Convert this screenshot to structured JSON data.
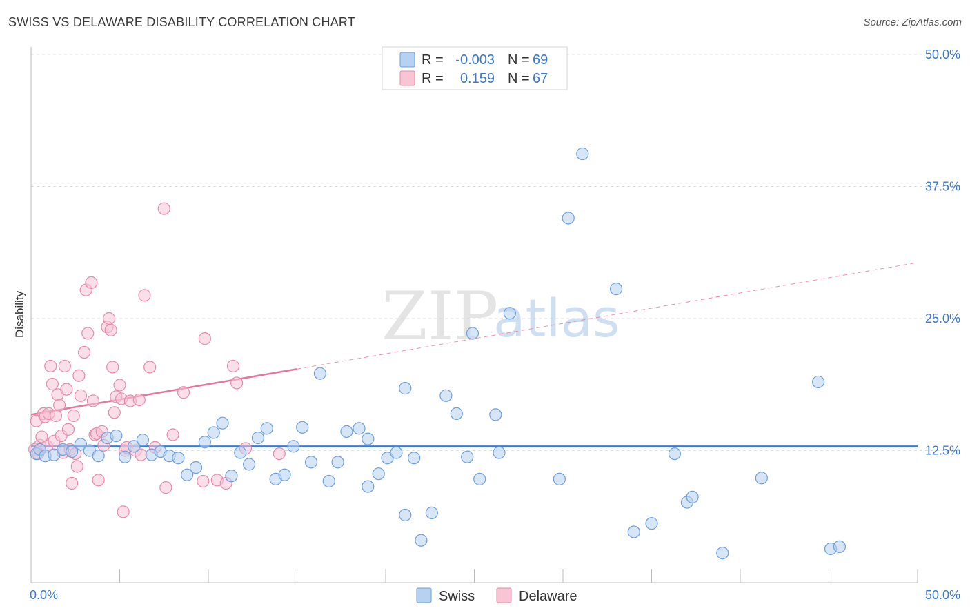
{
  "header": {
    "title": "SWISS VS DELAWARE DISABILITY CORRELATION CHART",
    "source": "Source: ZipAtlas.com"
  },
  "watermark": {
    "zip": "ZIP",
    "atlas": "atlas"
  },
  "legend": {
    "r_label": "R =",
    "n_label": "N =",
    "entries": [
      {
        "name": "Swiss",
        "r": "-0.003",
        "n": "69",
        "fill": "#b7d1f1",
        "stroke": "#6e9fdb"
      },
      {
        "name": "Delaware",
        "r": "0.159",
        "n": "67",
        "fill": "#f8c5d5",
        "stroke": "#e88aaa"
      }
    ]
  },
  "chart_data": {
    "type": "scatter",
    "title": "SWISS VS DELAWARE DISABILITY CORRELATION CHART",
    "xlabel": "",
    "ylabel": "Disability",
    "xlim": [
      0,
      50
    ],
    "ylim": [
      0,
      50
    ],
    "x_tick_labels": [
      "0.0%",
      "50.0%"
    ],
    "y_ticks": [
      12.5,
      25.0,
      37.5,
      50.0
    ],
    "y_tick_labels": [
      "12.5%",
      "25.0%",
      "37.5%",
      "50.0%"
    ],
    "grid": "horizontal dashed",
    "colors": {
      "swiss": "#3a7bd5",
      "delaware": "#e8769a"
    },
    "series": [
      {
        "name": "Swiss",
        "trend": {
          "x0": 0,
          "y0": 12.9,
          "x1": 50,
          "y1": 12.9,
          "solid_to": 50
        },
        "points": [
          [
            0.3,
            12.2
          ],
          [
            0.5,
            12.6
          ],
          [
            0.8,
            12.0
          ],
          [
            1.3,
            12.1
          ],
          [
            1.8,
            12.6
          ],
          [
            2.3,
            12.4
          ],
          [
            2.8,
            13.1
          ],
          [
            3.3,
            12.5
          ],
          [
            3.8,
            12.0
          ],
          [
            4.3,
            13.7
          ],
          [
            4.8,
            13.9
          ],
          [
            5.3,
            11.9
          ],
          [
            5.8,
            12.9
          ],
          [
            6.3,
            13.5
          ],
          [
            6.8,
            12.1
          ],
          [
            7.3,
            12.4
          ],
          [
            7.8,
            12.0
          ],
          [
            8.3,
            11.8
          ],
          [
            8.8,
            10.2
          ],
          [
            9.3,
            10.9
          ],
          [
            9.8,
            13.3
          ],
          [
            10.3,
            14.2
          ],
          [
            10.8,
            15.1
          ],
          [
            11.3,
            10.1
          ],
          [
            11.8,
            12.3
          ],
          [
            12.3,
            11.2
          ],
          [
            12.8,
            13.7
          ],
          [
            13.3,
            14.6
          ],
          [
            13.8,
            9.8
          ],
          [
            14.3,
            10.2
          ],
          [
            14.8,
            12.9
          ],
          [
            15.3,
            14.7
          ],
          [
            15.8,
            11.4
          ],
          [
            16.3,
            19.8
          ],
          [
            16.8,
            9.6
          ],
          [
            17.3,
            11.4
          ],
          [
            17.8,
            14.3
          ],
          [
            18.5,
            14.6
          ],
          [
            19.0,
            13.6
          ],
          [
            19.0,
            9.1
          ],
          [
            19.6,
            10.3
          ],
          [
            20.1,
            11.8
          ],
          [
            20.6,
            12.3
          ],
          [
            21.1,
            6.4
          ],
          [
            21.1,
            18.4
          ],
          [
            21.6,
            11.8
          ],
          [
            22.0,
            4.0
          ],
          [
            22.6,
            6.6
          ],
          [
            23.4,
            17.7
          ],
          [
            24.0,
            16.0
          ],
          [
            24.6,
            11.9
          ],
          [
            24.9,
            23.6
          ],
          [
            25.3,
            9.8
          ],
          [
            26.2,
            15.9
          ],
          [
            26.4,
            12.3
          ],
          [
            27.0,
            25.5
          ],
          [
            29.8,
            9.8
          ],
          [
            30.3,
            34.5
          ],
          [
            31.1,
            40.6
          ],
          [
            33.0,
            27.8
          ],
          [
            34.0,
            4.8
          ],
          [
            35.0,
            5.6
          ],
          [
            36.3,
            12.2
          ],
          [
            37.0,
            7.6
          ],
          [
            37.3,
            8.1
          ],
          [
            39.0,
            2.8
          ],
          [
            41.2,
            9.9
          ],
          [
            44.4,
            19.0
          ],
          [
            45.1,
            3.2
          ],
          [
            45.6,
            3.4
          ]
        ]
      },
      {
        "name": "Delaware",
        "trend": {
          "x0": 0,
          "y0": 15.9,
          "x1": 50,
          "y1": 30.3,
          "solid_to": 15
        },
        "points": [
          [
            0.2,
            12.6
          ],
          [
            0.3,
            15.3
          ],
          [
            0.4,
            12.2
          ],
          [
            0.5,
            13.0
          ],
          [
            0.6,
            13.8
          ],
          [
            0.7,
            16.0
          ],
          [
            0.8,
            15.7
          ],
          [
            0.9,
            12.9
          ],
          [
            1.0,
            16.0
          ],
          [
            1.1,
            20.5
          ],
          [
            1.2,
            18.8
          ],
          [
            1.3,
            13.4
          ],
          [
            1.4,
            15.8
          ],
          [
            1.5,
            17.8
          ],
          [
            1.6,
            16.8
          ],
          [
            1.7,
            13.9
          ],
          [
            1.8,
            12.3
          ],
          [
            1.9,
            20.5
          ],
          [
            2.0,
            18.3
          ],
          [
            2.1,
            14.5
          ],
          [
            2.2,
            12.6
          ],
          [
            2.3,
            9.4
          ],
          [
            2.4,
            15.8
          ],
          [
            2.5,
            12.2
          ],
          [
            2.6,
            11.0
          ],
          [
            2.7,
            19.6
          ],
          [
            2.8,
            17.7
          ],
          [
            3.0,
            21.8
          ],
          [
            3.1,
            27.7
          ],
          [
            3.2,
            23.6
          ],
          [
            3.4,
            28.4
          ],
          [
            3.5,
            17.2
          ],
          [
            3.6,
            14.0
          ],
          [
            3.7,
            14.1
          ],
          [
            3.8,
            9.7
          ],
          [
            4.0,
            14.3
          ],
          [
            4.1,
            13.0
          ],
          [
            4.3,
            24.2
          ],
          [
            4.4,
            25.0
          ],
          [
            4.5,
            23.9
          ],
          [
            4.6,
            20.4
          ],
          [
            4.7,
            16.1
          ],
          [
            4.8,
            17.6
          ],
          [
            5.0,
            18.7
          ],
          [
            5.1,
            17.4
          ],
          [
            5.2,
            6.7
          ],
          [
            5.3,
            12.5
          ],
          [
            5.4,
            12.8
          ],
          [
            5.6,
            17.2
          ],
          [
            5.9,
            12.5
          ],
          [
            6.1,
            17.3
          ],
          [
            6.2,
            12.1
          ],
          [
            6.4,
            27.2
          ],
          [
            6.7,
            20.4
          ],
          [
            7.0,
            12.8
          ],
          [
            7.5,
            35.4
          ],
          [
            7.6,
            9.0
          ],
          [
            8.0,
            14.0
          ],
          [
            8.6,
            18.0
          ],
          [
            9.7,
            9.6
          ],
          [
            9.8,
            23.1
          ],
          [
            10.5,
            9.7
          ],
          [
            11.0,
            9.4
          ],
          [
            11.4,
            20.5
          ],
          [
            11.6,
            18.9
          ],
          [
            12.1,
            12.7
          ],
          [
            14.0,
            12.2
          ]
        ]
      }
    ]
  }
}
